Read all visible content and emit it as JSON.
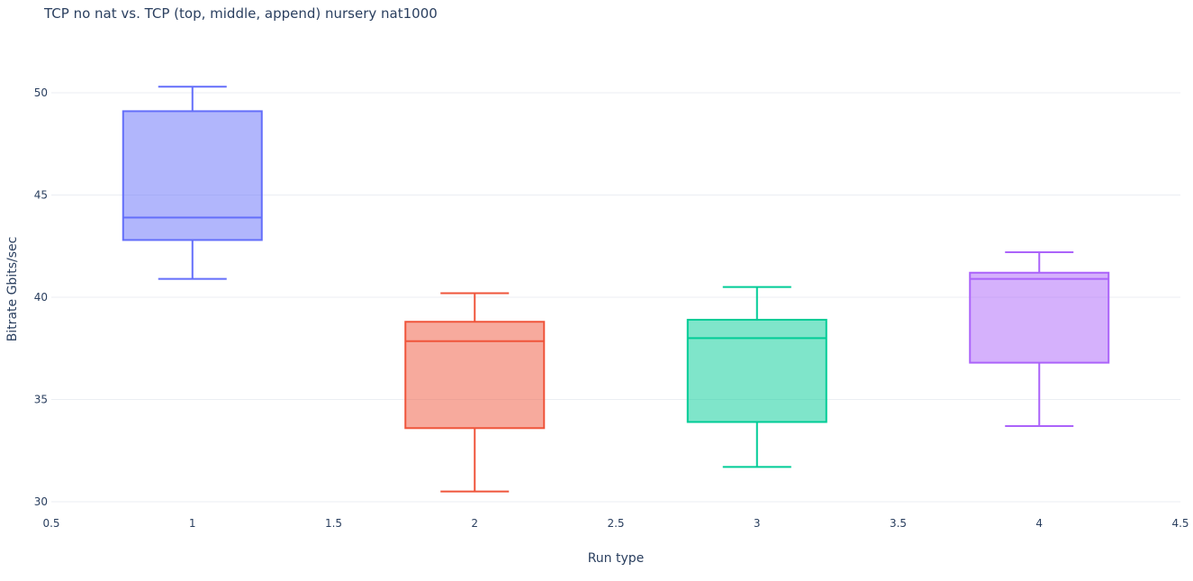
{
  "chart_data": {
    "type": "box",
    "title": "TCP no nat vs. TCP (top, middle, append) nursery nat1000",
    "xlabel": "Run type",
    "ylabel": "Bitrate Gbits/sec",
    "xlim": [
      0.5,
      4.5
    ],
    "ylim": [
      29.5,
      52.3
    ],
    "x_ticks": [
      0.5,
      1,
      1.5,
      2,
      2.5,
      3,
      3.5,
      4,
      4.5
    ],
    "y_ticks": [
      30,
      35,
      40,
      45,
      50
    ],
    "grid": true,
    "legend": "none",
    "boxes": [
      {
        "x": 1,
        "min": 40.9,
        "q1": 42.8,
        "median": 43.9,
        "q3": 49.1,
        "max": 50.3,
        "color": "#636efa"
      },
      {
        "x": 2,
        "min": 30.5,
        "q1": 33.6,
        "median": 37.85,
        "q3": 38.8,
        "max": 40.2,
        "color": "#EF553B"
      },
      {
        "x": 3,
        "min": 31.7,
        "q1": 33.9,
        "median": 38.0,
        "q3": 38.9,
        "max": 40.5,
        "color": "#00cc96"
      },
      {
        "x": 4,
        "min": 33.7,
        "q1": 36.8,
        "median": 40.9,
        "q3": 41.2,
        "max": 42.2,
        "color": "#ab63fa"
      }
    ]
  }
}
